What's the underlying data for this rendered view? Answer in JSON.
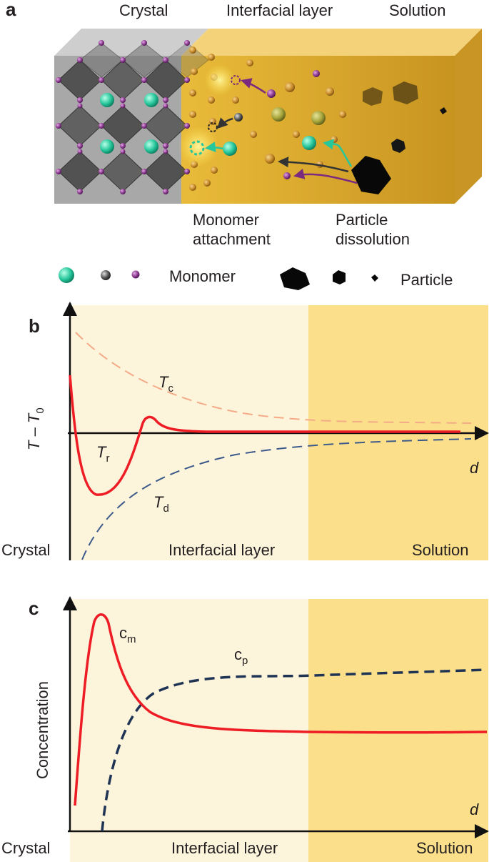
{
  "panel_a": {
    "letter": "a",
    "region_crystal": "Crystal",
    "region_interfacial": "Interfacial layer",
    "region_solution": "Solution",
    "process_attachment_line1": "Monomer",
    "process_attachment_line2": "attachment",
    "process_dissolution_line1": "Particle",
    "process_dissolution_line2": "dissolution",
    "legend_monomer": "Monomer",
    "legend_particle": "Particle"
  },
  "panel_b": {
    "letter": "b",
    "ylabel_main": "T",
    "ylabel_sep": " – ",
    "ylabel_sub_base": "T",
    "ylabel_sub": "0",
    "xlabel": "d",
    "curve_c_base": "T",
    "curve_c_sub": "c",
    "curve_r_base": "T",
    "curve_r_sub": "r",
    "curve_d_base": "T",
    "curve_d_sub": "d",
    "region_crystal": "Crystal",
    "region_interfacial": "Interfacial layer",
    "region_solution": "Solution"
  },
  "panel_c": {
    "letter": "c",
    "ylabel": "Concentration",
    "xlabel": "d",
    "curve_m_base": "c",
    "curve_m_sub": "m",
    "curve_p_base": "c",
    "curve_p_sub": "p",
    "region_crystal": "Crystal",
    "region_interfacial": "Interfacial layer",
    "region_solution": "Solution"
  },
  "colors": {
    "interfacial_bg": "#fdf4dc",
    "solution_bg": "#fbdf8a",
    "red_curve": "#ee1c24",
    "navy_curve": "#1f3354",
    "salmon_curve": "#f4ab88",
    "blue_curve": "#3c5a8a",
    "teal_monomer": "#27c79c",
    "purple_monomer": "#8b3a8f",
    "gold_box": "#d9a52b"
  }
}
